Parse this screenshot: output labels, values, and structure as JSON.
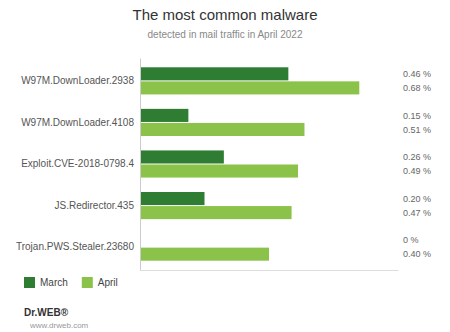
{
  "chart_data": {
    "type": "bar",
    "orientation": "horizontal",
    "title": "The most common malware",
    "subtitle": "detected in mail traffic in April 2022",
    "categories": [
      "W97M.DownLoader.2938",
      "W97M.DownLoader.4108",
      "Exploit.CVE-2018-0798.4",
      "JS.Redirector.435",
      "Trojan.PWS.Stealer.23680"
    ],
    "series": [
      {
        "name": "March",
        "color": "#2e7d32",
        "values": [
          0.46,
          0.15,
          0.26,
          0.2,
          0.0
        ],
        "value_labels": [
          "0.46 %",
          "0.15 %",
          "0.26 %",
          "0.20 %",
          "0 %"
        ]
      },
      {
        "name": "April",
        "color": "#8bc34a",
        "values": [
          0.68,
          0.51,
          0.49,
          0.47,
          0.4
        ],
        "value_labels": [
          "0.68 %",
          "0.51 %",
          "0.49 %",
          "0.47 %",
          "0.40 %"
        ]
      }
    ],
    "xlim": [
      0,
      0.8
    ],
    "tick_labels": "y",
    "data_labels": true,
    "grid": false,
    "legend": "lower left",
    "annotations": [
      "Dr.WEB®",
      "www.drweb.com"
    ]
  }
}
